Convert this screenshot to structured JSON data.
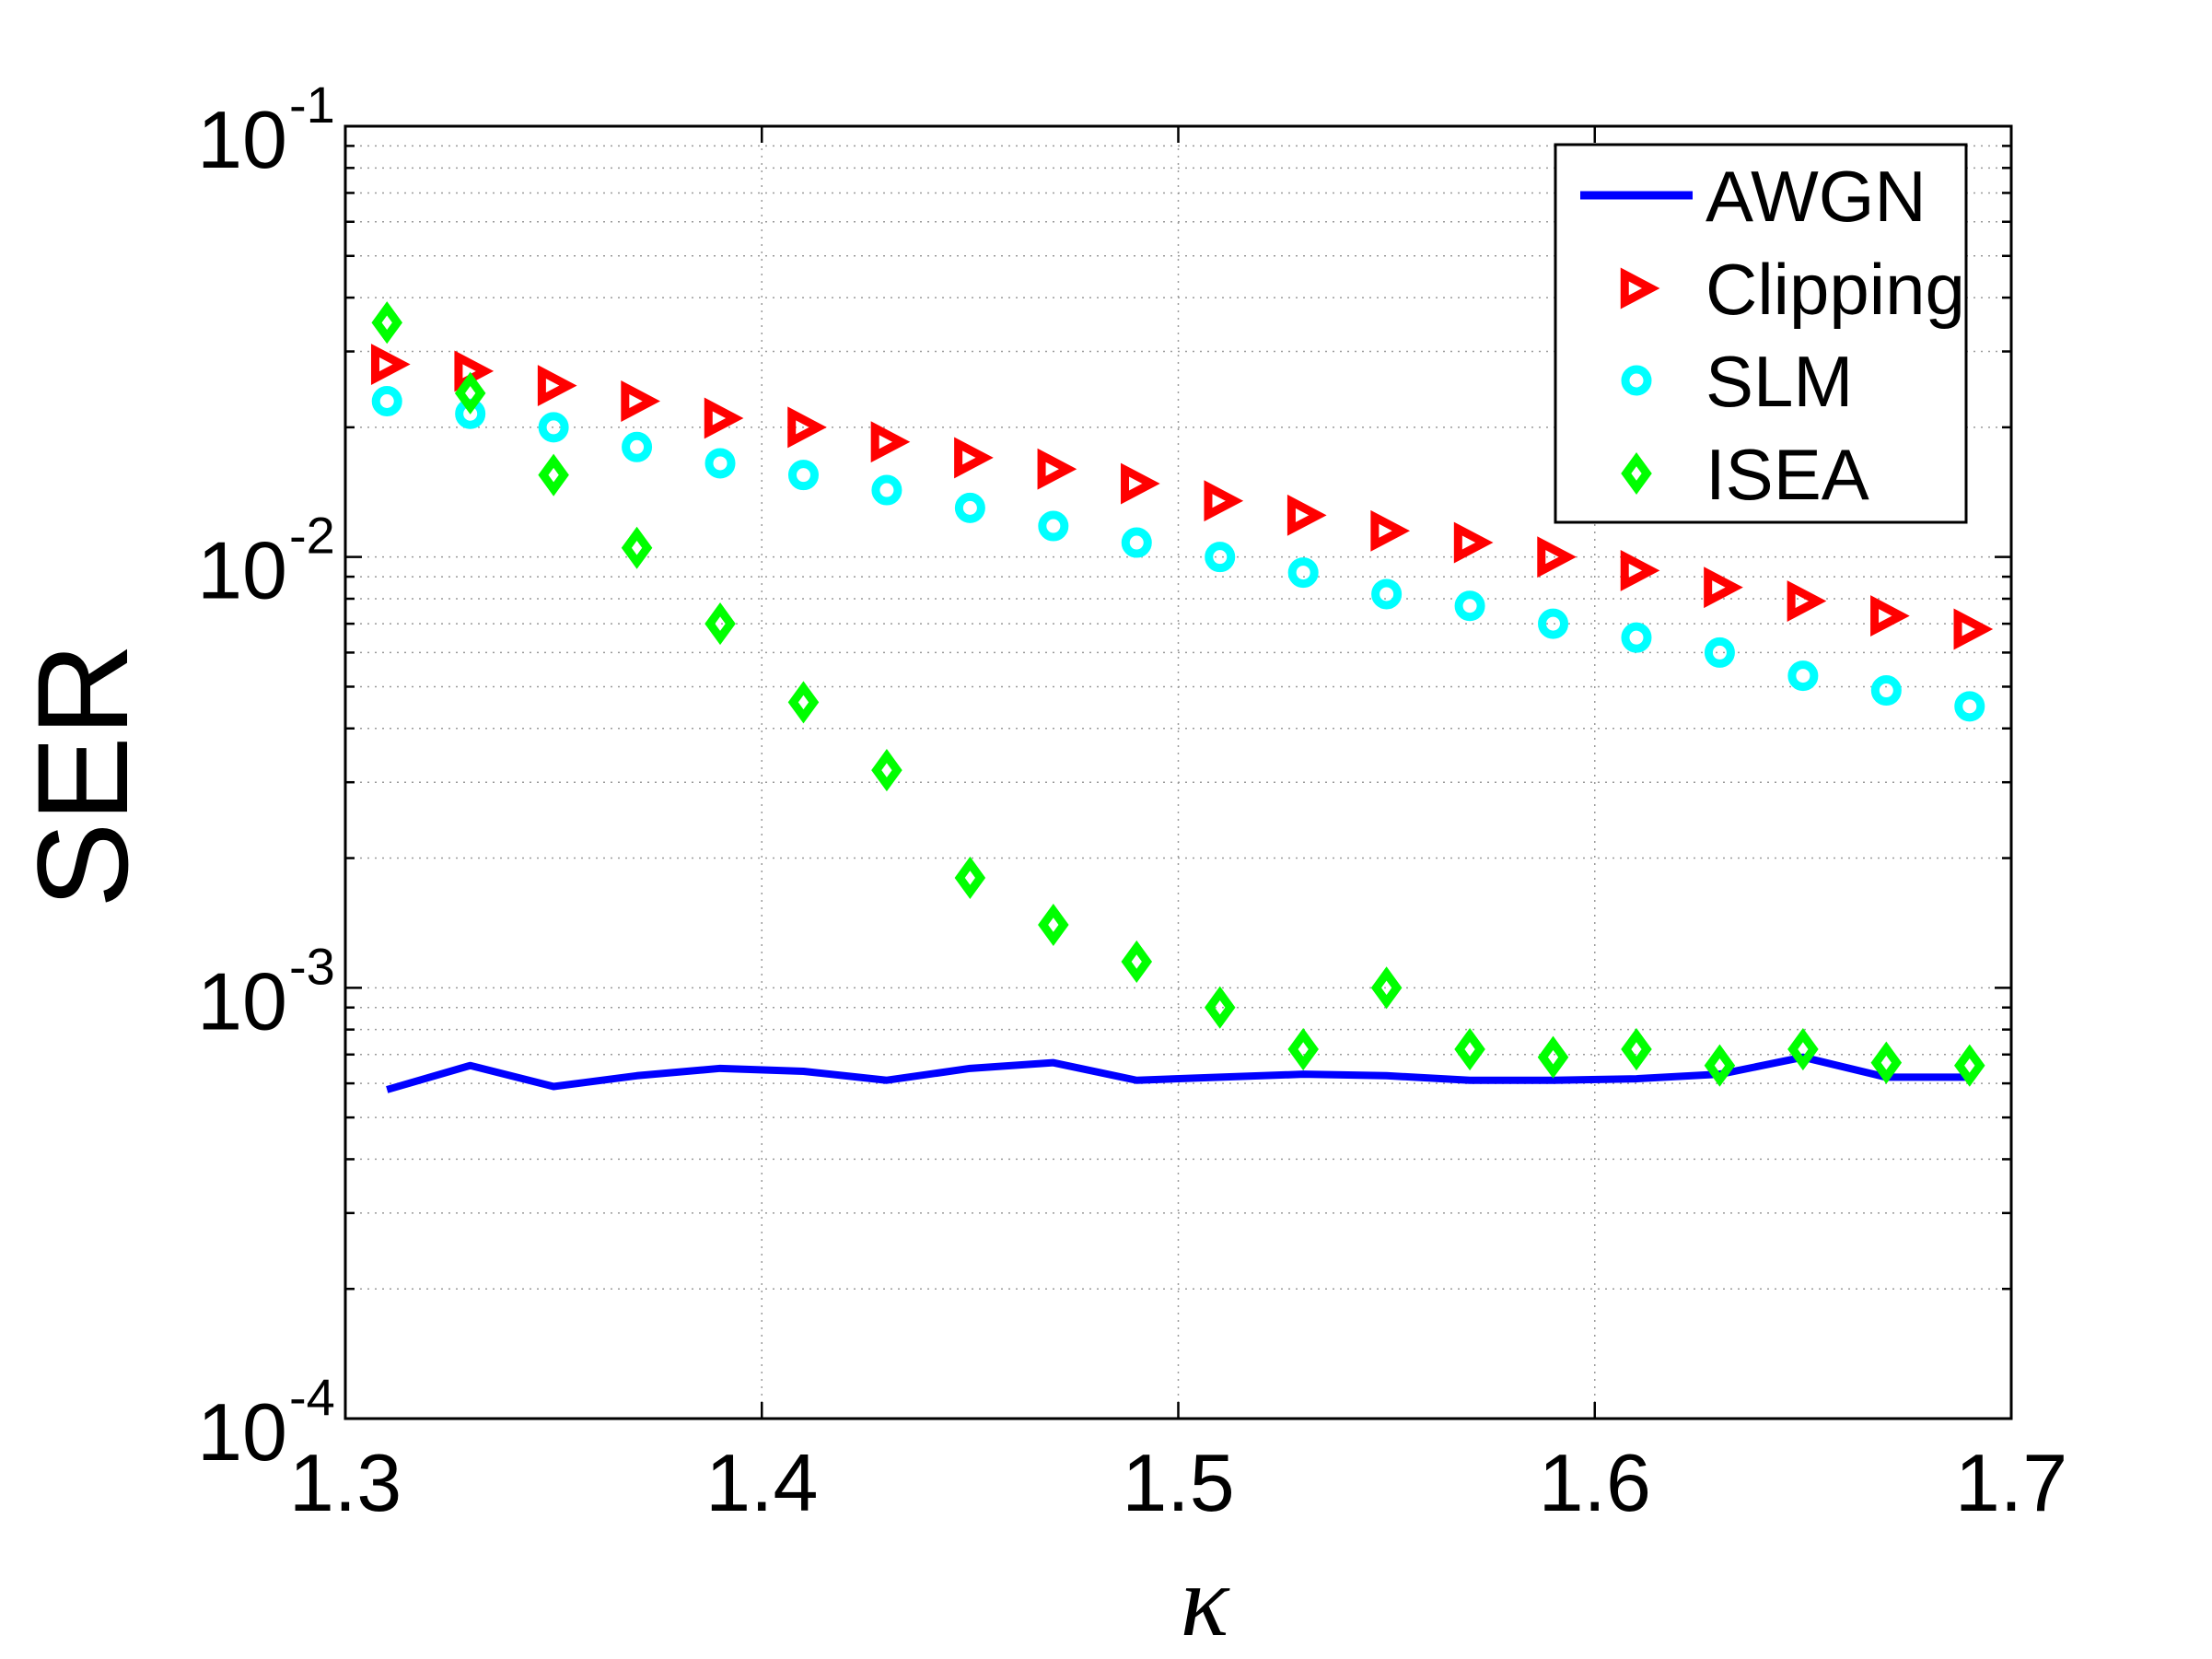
{
  "chart_data": {
    "type": "line",
    "title": "",
    "xlabel": "κ",
    "ylabel": "SER",
    "xlim": [
      1.3,
      1.7
    ],
    "ylim": [
      0.0001,
      0.1
    ],
    "yscale": "log",
    "grid": true,
    "legend_position": "top-right",
    "x_ticks": [
      "1.3",
      "1.4",
      "1.5",
      "1.6",
      "1.7"
    ],
    "x_tick_values": [
      1.3,
      1.4,
      1.5,
      1.6,
      1.7
    ],
    "y_ticks": [
      {
        "value": 0.1,
        "base": "10",
        "exp": "-1"
      },
      {
        "value": 0.01,
        "base": "10",
        "exp": "-2"
      },
      {
        "value": 0.001,
        "base": "10",
        "exp": "-3"
      },
      {
        "value": 0.0001,
        "base": "10",
        "exp": "-4"
      }
    ],
    "x": [
      1.31,
      1.33,
      1.35,
      1.37,
      1.39,
      1.41,
      1.43,
      1.45,
      1.47,
      1.49,
      1.51,
      1.53,
      1.55,
      1.57,
      1.59,
      1.61,
      1.63,
      1.65,
      1.67,
      1.69
    ],
    "series": [
      {
        "name": "AWGN",
        "style": "line",
        "color": "#0000ff",
        "values": [
          0.00058,
          0.00066,
          0.00059,
          0.000625,
          0.00065,
          0.00064,
          0.00061,
          0.00065,
          0.00067,
          0.00061,
          0.00062,
          0.00063,
          0.000625,
          0.00061,
          0.00061,
          0.000615,
          0.00063,
          0.00069,
          0.00062,
          0.00062
        ]
      },
      {
        "name": "Clipping",
        "style": "triangle-right",
        "color": "#ff0000",
        "values": [
          0.028,
          0.027,
          0.025,
          0.023,
          0.021,
          0.02,
          0.0185,
          0.017,
          0.016,
          0.0148,
          0.0135,
          0.0125,
          0.0115,
          0.0108,
          0.01,
          0.0093,
          0.0085,
          0.0079,
          0.0073,
          0.0068
        ]
      },
      {
        "name": "SLM",
        "style": "circle",
        "color": "#00ffff",
        "values": [
          0.023,
          0.0215,
          0.02,
          0.018,
          0.0165,
          0.0155,
          0.0143,
          0.013,
          0.0118,
          0.0108,
          0.01,
          0.0092,
          0.0082,
          0.0077,
          0.007,
          0.0065,
          0.006,
          0.0053,
          0.0049,
          0.0045
        ]
      },
      {
        "name": "ISEA",
        "style": "diamond",
        "color": "#00ff00",
        "values": [
          0.035,
          0.024,
          0.0155,
          0.0105,
          0.007,
          0.0046,
          0.0032,
          0.0018,
          0.0014,
          0.00115,
          0.0009,
          0.00072,
          0.001,
          0.00072,
          0.00069,
          0.00072,
          0.00066,
          0.00072,
          0.00067,
          0.00066
        ]
      }
    ]
  }
}
